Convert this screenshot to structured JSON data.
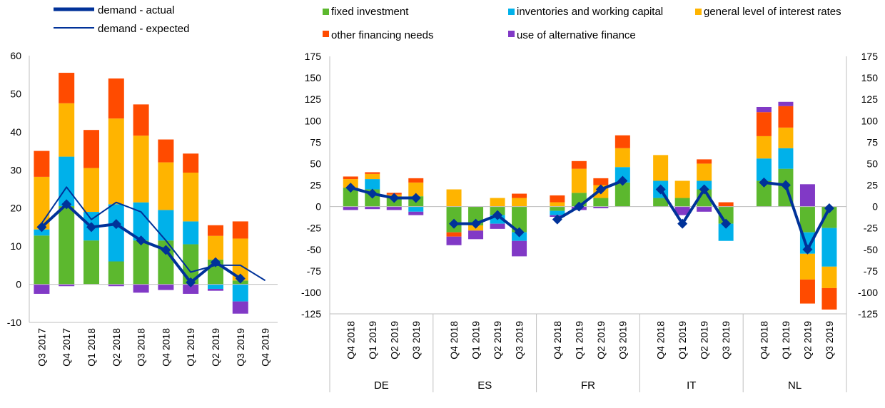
{
  "legend": {
    "demand_actual": "demand - actual",
    "demand_expected": "demand - expected",
    "fixed_investment": "fixed investment",
    "inventories": "inventories and working capital",
    "interest_rates": "general level of interest rates",
    "other_financing": "other financing needs",
    "alternative_finance": "use of alternative finance"
  },
  "colors": {
    "fixed_investment": "#5cb82e",
    "inventories": "#00b1ea",
    "interest_rates": "#ffb400",
    "other_financing": "#ff4b00",
    "alternative_finance": "#8139c6",
    "demand_line": "#003299"
  },
  "chart_data": [
    {
      "type": "bar",
      "stacked": true,
      "categories": [
        "Q3 2017",
        "Q4 2017",
        "Q1 2018",
        "Q2 2018",
        "Q3 2018",
        "Q4 2018",
        "Q1 2019",
        "Q2 2019",
        "Q3 2019",
        "Q4 2019"
      ],
      "ylim": [
        -10,
        60
      ],
      "yticks": [
        "-10",
        "0",
        "10",
        "20",
        "30",
        "40",
        "50",
        "60"
      ],
      "series": [
        {
          "key": "fixed_investment",
          "values": [
            12.8,
            20.5,
            11.5,
            6.0,
            11.5,
            11.5,
            10.5,
            6.5,
            1.0,
            null
          ]
        },
        {
          "key": "inventories",
          "values": [
            1.6,
            13.0,
            7.5,
            15.0,
            10.0,
            8.0,
            6.0,
            -1.2,
            -4.5,
            null
          ]
        },
        {
          "key": "interest_rates",
          "values": [
            13.8,
            14.0,
            11.5,
            22.5,
            17.5,
            12.5,
            12.8,
            6.2,
            11.0,
            null
          ]
        },
        {
          "key": "other_financing",
          "values": [
            6.8,
            8.0,
            10.0,
            10.5,
            8.2,
            6.0,
            5.0,
            2.8,
            4.5,
            null
          ]
        },
        {
          "key": "alternative_finance",
          "values": [
            -2.5,
            -0.5,
            0,
            -0.5,
            -2.2,
            -1.5,
            -2.5,
            -0.5,
            -3.2,
            null
          ]
        }
      ],
      "lines": [
        {
          "key": "demand_actual",
          "values": [
            15.0,
            21.0,
            15.0,
            15.8,
            11.5,
            9.0,
            0.5,
            5.8,
            1.5,
            null
          ],
          "markers": true
        },
        {
          "key": "demand_expected",
          "values": [
            16.0,
            25.5,
            17.0,
            21.5,
            19.0,
            11.5,
            3.2,
            5.0,
            5.0,
            1.0
          ],
          "markers": false
        }
      ]
    },
    {
      "type": "bar",
      "stacked": true,
      "groups": [
        "DE",
        "ES",
        "FR",
        "IT",
        "NL"
      ],
      "categories": [
        "Q4 2018",
        "Q1 2019",
        "Q2 2019",
        "Q3 2019"
      ],
      "ylim": [
        -125,
        175
      ],
      "yticks": [
        "-125",
        "-100",
        "-75",
        "-50",
        "-25",
        "0",
        "25",
        "50",
        "75",
        "100",
        "125",
        "150",
        "175"
      ],
      "series": [
        {
          "key": "fixed_investment",
          "values": [
            [
              22,
              20,
              10,
              12
            ],
            [
              -30,
              -22,
              -10,
              -30
            ],
            [
              -5,
              16,
              10,
              28
            ],
            [
              10,
              10,
              20,
              -20
            ],
            [
              30,
              44,
              -30,
              -25
            ]
          ]
        },
        {
          "key": "inventories",
          "values": [
            [
              0,
              12,
              0,
              -6
            ],
            [
              0,
              0,
              -10,
              -10
            ],
            [
              -5,
              0,
              0,
              18
            ],
            [
              20,
              0,
              10,
              -20
            ],
            [
              26,
              24,
              -25,
              -45
            ]
          ]
        },
        {
          "key": "interest_rates",
          "values": [
            [
              10,
              6,
              4,
              16
            ],
            [
              20,
              -6,
              10,
              10
            ],
            [
              5,
              28,
              15,
              22
            ],
            [
              30,
              20,
              20,
              0
            ],
            [
              26,
              24,
              -30,
              -25
            ]
          ]
        },
        {
          "key": "other_financing",
          "values": [
            [
              3,
              2,
              2,
              5
            ],
            [
              -5,
              0,
              0,
              5
            ],
            [
              8,
              9,
              8,
              15
            ],
            [
              0,
              0,
              5,
              5
            ],
            [
              28,
              25,
              -28,
              -25
            ]
          ]
        },
        {
          "key": "alternative_finance",
          "values": [
            [
              -4,
              -3,
              -4,
              -4
            ],
            [
              -10,
              -10,
              -6,
              -18
            ],
            [
              -2,
              -4,
              -2,
              0
            ],
            [
              0,
              -10,
              -6,
              0
            ],
            [
              6,
              5,
              26,
              0
            ]
          ]
        }
      ],
      "lines": [
        {
          "key": "demand_actual",
          "values": [
            [
              22,
              15,
              10,
              10
            ],
            [
              -20,
              -20,
              -10,
              -30
            ],
            [
              -15,
              0,
              20,
              30
            ],
            [
              20,
              -20,
              20,
              -20
            ],
            [
              28,
              25,
              -50,
              -2
            ]
          ],
          "markers": true
        }
      ]
    }
  ]
}
